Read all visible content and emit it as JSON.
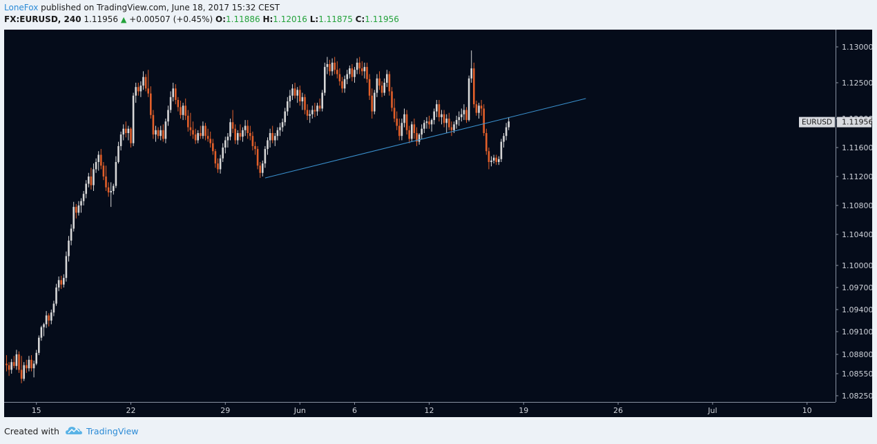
{
  "header": {
    "author": "LoneFox",
    "published": " published on TradingView.com, June 18, 2017 15:32 CEST",
    "symbol": "FX:EURUSD, 240",
    "price": "1.11956",
    "change": "+0.00507 (+0.45%)",
    "o_label": "O:",
    "o_value": "1.11886",
    "h_label": "H:",
    "h_value": "1.12016",
    "l_label": "L:",
    "l_value": "1.11875",
    "c_label": "C:",
    "c_value": "1.11956"
  },
  "footer": {
    "created_with": "Created with",
    "brand": "TradingView"
  },
  "colors": {
    "background": "#050c1a",
    "up": "#d7d7d7",
    "down": "#e25f2a",
    "trendline": "#3b93d1",
    "axis_text": "#cfd3da",
    "price_label_bg": "#d9dbe0"
  },
  "chart_data": {
    "type": "candlestick",
    "symbol": "EURUSD",
    "last_price": "1.11956",
    "y_ticks": [
      "1.13000",
      "1.12500",
      "1.12000",
      "1.11600",
      "1.11200",
      "1.10800",
      "1.10400",
      "1.10000",
      "1.09700",
      "1.09400",
      "1.09100",
      "1.08800",
      "1.08550",
      "1.08250"
    ],
    "x_ticks": [
      "15",
      "22",
      "29",
      "Jun",
      "6",
      "12",
      "19",
      "26",
      "Jul",
      "10"
    ],
    "x_tick_index": [
      12,
      50,
      88,
      118,
      140,
      170,
      208,
      246,
      284,
      322
    ],
    "ylim_note": "axis runs 1.08250 to 1.13000",
    "trendline": {
      "from": {
        "index": 104,
        "price": 1.1118
      },
      "to": {
        "index": 233,
        "price": 1.1228
      }
    },
    "candles": [
      [
        1.0868,
        1.0879,
        1.0858,
        1.0866
      ],
      [
        1.0866,
        1.087,
        1.0852,
        1.086
      ],
      [
        1.086,
        1.0874,
        1.0855,
        1.087
      ],
      [
        1.087,
        1.0878,
        1.0862,
        1.0865
      ],
      [
        1.0865,
        1.0886,
        1.086,
        1.088
      ],
      [
        1.088,
        1.0884,
        1.0856,
        1.086
      ],
      [
        1.086,
        1.0878,
        1.0842,
        1.0848
      ],
      [
        1.0848,
        1.087,
        1.0845,
        1.0866
      ],
      [
        1.0866,
        1.0873,
        1.0856,
        1.0862
      ],
      [
        1.0862,
        1.0878,
        1.0858,
        1.0873
      ],
      [
        1.0873,
        1.0879,
        1.0858,
        1.0862
      ],
      [
        1.0862,
        1.0872,
        1.085,
        1.0868
      ],
      [
        1.0868,
        1.0886,
        1.0866,
        1.0882
      ],
      [
        1.0882,
        1.0905,
        1.0879,
        1.0902
      ],
      [
        1.0902,
        1.0918,
        1.0898,
        1.0916
      ],
      [
        1.0916,
        1.0922,
        1.0904,
        1.092
      ],
      [
        1.092,
        1.0938,
        1.0915,
        1.0932
      ],
      [
        1.0932,
        1.0935,
        1.0917,
        1.0925
      ],
      [
        1.0925,
        1.094,
        1.092,
        1.0936
      ],
      [
        1.0936,
        1.0952,
        1.0931,
        1.0948
      ],
      [
        1.0948,
        1.0975,
        1.0945,
        1.097
      ],
      [
        1.097,
        1.0985,
        1.0965,
        1.098
      ],
      [
        1.098,
        1.0986,
        1.0968,
        1.0974
      ],
      [
        1.0974,
        1.0988,
        1.097,
        1.0983
      ],
      [
        1.0983,
        1.1018,
        1.0978,
        1.1012
      ],
      [
        1.1012,
        1.1038,
        1.1005,
        1.1032
      ],
      [
        1.1032,
        1.1054,
        1.1026,
        1.1048
      ],
      [
        1.1048,
        1.1085,
        1.1044,
        1.1078
      ],
      [
        1.1078,
        1.1082,
        1.1062,
        1.107
      ],
      [
        1.107,
        1.1086,
        1.1066,
        1.108
      ],
      [
        1.108,
        1.109,
        1.107,
        1.1086
      ],
      [
        1.1086,
        1.11,
        1.108,
        1.1096
      ],
      [
        1.1096,
        1.1115,
        1.109,
        1.111
      ],
      [
        1.111,
        1.1125,
        1.1105,
        1.112
      ],
      [
        1.112,
        1.1132,
        1.1102,
        1.1108
      ],
      [
        1.1108,
        1.1138,
        1.11,
        1.113
      ],
      [
        1.113,
        1.1145,
        1.1125,
        1.114
      ],
      [
        1.114,
        1.1155,
        1.1128,
        1.115
      ],
      [
        1.115,
        1.1158,
        1.113,
        1.1135
      ],
      [
        1.1135,
        1.114,
        1.1115,
        1.112
      ],
      [
        1.112,
        1.1135,
        1.11,
        1.1105
      ],
      [
        1.1105,
        1.1112,
        1.1092,
        1.1098
      ],
      [
        1.1098,
        1.1112,
        1.1078,
        1.11
      ],
      [
        1.11,
        1.111,
        1.1095,
        1.1107
      ],
      [
        1.1107,
        1.1148,
        1.1104,
        1.114
      ],
      [
        1.114,
        1.1168,
        1.1138,
        1.1162
      ],
      [
        1.1162,
        1.1182,
        1.1156,
        1.1178
      ],
      [
        1.1178,
        1.1192,
        1.117,
        1.1186
      ],
      [
        1.1186,
        1.1196,
        1.1174,
        1.118
      ],
      [
        1.118,
        1.119,
        1.117,
        1.1186
      ],
      [
        1.1186,
        1.1188,
        1.116,
        1.1166
      ],
      [
        1.1166,
        1.1236,
        1.1162,
        1.1232
      ],
      [
        1.1232,
        1.125,
        1.1222,
        1.1244
      ],
      [
        1.1244,
        1.125,
        1.1232,
        1.1238
      ],
      [
        1.1238,
        1.1252,
        1.123,
        1.1246
      ],
      [
        1.1246,
        1.1266,
        1.124,
        1.1258
      ],
      [
        1.1258,
        1.1262,
        1.1238,
        1.1242
      ],
      [
        1.1242,
        1.1268,
        1.123,
        1.1235
      ],
      [
        1.1235,
        1.1245,
        1.12,
        1.1205
      ],
      [
        1.1205,
        1.1212,
        1.1172,
        1.1178
      ],
      [
        1.1178,
        1.119,
        1.1168,
        1.1184
      ],
      [
        1.1184,
        1.1188,
        1.1172,
        1.1176
      ],
      [
        1.1176,
        1.119,
        1.117,
        1.1184
      ],
      [
        1.1184,
        1.1192,
        1.1168,
        1.1172
      ],
      [
        1.1172,
        1.12,
        1.1166,
        1.1196
      ],
      [
        1.1196,
        1.1218,
        1.119,
        1.1212
      ],
      [
        1.1212,
        1.1238,
        1.1208,
        1.123
      ],
      [
        1.123,
        1.125,
        1.1224,
        1.1242
      ],
      [
        1.1242,
        1.1248,
        1.122,
        1.1226
      ],
      [
        1.1226,
        1.123,
        1.121,
        1.1216
      ],
      [
        1.1216,
        1.1225,
        1.12,
        1.1205
      ],
      [
        1.1205,
        1.1222,
        1.1198,
        1.1218
      ],
      [
        1.1218,
        1.1228,
        1.1198,
        1.1204
      ],
      [
        1.1204,
        1.1212,
        1.1182,
        1.1188
      ],
      [
        1.1188,
        1.1208,
        1.1176,
        1.1184
      ],
      [
        1.1184,
        1.1196,
        1.1172,
        1.1178
      ],
      [
        1.1178,
        1.1186,
        1.1165,
        1.117
      ],
      [
        1.117,
        1.1184,
        1.1166,
        1.118
      ],
      [
        1.118,
        1.119,
        1.1172,
        1.1176
      ],
      [
        1.1176,
        1.1196,
        1.1172,
        1.119
      ],
      [
        1.119,
        1.1194,
        1.117,
        1.1176
      ],
      [
        1.1176,
        1.1186,
        1.1168,
        1.1172
      ],
      [
        1.1172,
        1.1182,
        1.116,
        1.1166
      ],
      [
        1.1166,
        1.1172,
        1.115,
        1.1155
      ],
      [
        1.1155,
        1.1158,
        1.1132,
        1.1138
      ],
      [
        1.1138,
        1.1145,
        1.1125,
        1.113
      ],
      [
        1.113,
        1.115,
        1.1124,
        1.1145
      ],
      [
        1.1145,
        1.1166,
        1.114,
        1.116
      ],
      [
        1.116,
        1.1175,
        1.1152,
        1.117
      ],
      [
        1.117,
        1.118,
        1.116,
        1.1175
      ],
      [
        1.1175,
        1.12,
        1.117,
        1.1195
      ],
      [
        1.1195,
        1.1212,
        1.118,
        1.1186
      ],
      [
        1.1186,
        1.1192,
        1.1165,
        1.117
      ],
      [
        1.117,
        1.1184,
        1.1164,
        1.118
      ],
      [
        1.118,
        1.1192,
        1.117,
        1.1175
      ],
      [
        1.1175,
        1.1188,
        1.1168,
        1.1184
      ],
      [
        1.1184,
        1.1198,
        1.1176,
        1.119
      ],
      [
        1.119,
        1.1198,
        1.1172,
        1.118
      ],
      [
        1.118,
        1.119,
        1.117,
        1.1176
      ],
      [
        1.1176,
        1.1182,
        1.1156,
        1.1162
      ],
      [
        1.1162,
        1.1168,
        1.115,
        1.1158
      ],
      [
        1.1158,
        1.1162,
        1.113,
        1.1135
      ],
      [
        1.1135,
        1.114,
        1.1118,
        1.1125
      ],
      [
        1.1125,
        1.1142,
        1.112,
        1.1138
      ],
      [
        1.1138,
        1.1162,
        1.1132,
        1.1158
      ],
      [
        1.1158,
        1.1174,
        1.115,
        1.117
      ],
      [
        1.117,
        1.1186,
        1.116,
        1.118
      ],
      [
        1.118,
        1.119,
        1.1166,
        1.117
      ],
      [
        1.117,
        1.118,
        1.1162,
        1.1176
      ],
      [
        1.1176,
        1.1188,
        1.117,
        1.1184
      ],
      [
        1.1184,
        1.1194,
        1.1176,
        1.1188
      ],
      [
        1.1188,
        1.12,
        1.1182,
        1.1195
      ],
      [
        1.1195,
        1.1215,
        1.119,
        1.121
      ],
      [
        1.121,
        1.123,
        1.1204,
        1.1224
      ],
      [
        1.1224,
        1.124,
        1.1215,
        1.1232
      ],
      [
        1.1232,
        1.1248,
        1.1226,
        1.1242
      ],
      [
        1.1242,
        1.125,
        1.1228,
        1.1232
      ],
      [
        1.1232,
        1.1244,
        1.1222,
        1.124
      ],
      [
        1.124,
        1.1246,
        1.1218,
        1.1224
      ],
      [
        1.1224,
        1.1236,
        1.1212,
        1.123
      ],
      [
        1.123,
        1.1234,
        1.1206,
        1.1212
      ],
      [
        1.1212,
        1.122,
        1.1198,
        1.1204
      ],
      [
        1.1204,
        1.1212,
        1.1194,
        1.1206
      ],
      [
        1.1206,
        1.1218,
        1.12,
        1.1212
      ],
      [
        1.1212,
        1.1222,
        1.1202,
        1.121
      ],
      [
        1.121,
        1.1222,
        1.1204,
        1.1218
      ],
      [
        1.1218,
        1.1228,
        1.121,
        1.1214
      ],
      [
        1.1214,
        1.124,
        1.121,
        1.1236
      ],
      [
        1.1236,
        1.1278,
        1.1232,
        1.1272
      ],
      [
        1.1272,
        1.1286,
        1.1262,
        1.1276
      ],
      [
        1.1276,
        1.1282,
        1.126,
        1.1266
      ],
      [
        1.1266,
        1.1284,
        1.126,
        1.1278
      ],
      [
        1.1278,
        1.1286,
        1.1262,
        1.1268
      ],
      [
        1.1268,
        1.128,
        1.1256,
        1.1262
      ],
      [
        1.1262,
        1.127,
        1.1246,
        1.1252
      ],
      [
        1.1252,
        1.1258,
        1.1236,
        1.1242
      ],
      [
        1.1242,
        1.126,
        1.1236,
        1.1255
      ],
      [
        1.1255,
        1.1268,
        1.1248,
        1.1262
      ],
      [
        1.1262,
        1.1274,
        1.1256,
        1.127
      ],
      [
        1.127,
        1.1276,
        1.1252,
        1.1258
      ],
      [
        1.1258,
        1.1272,
        1.125,
        1.1268
      ],
      [
        1.1268,
        1.1284,
        1.1262,
        1.1278
      ],
      [
        1.1278,
        1.1286,
        1.1262,
        1.127
      ],
      [
        1.127,
        1.128,
        1.126,
        1.1266
      ],
      [
        1.1266,
        1.1278,
        1.1256,
        1.1272
      ],
      [
        1.1272,
        1.1278,
        1.125,
        1.1255
      ],
      [
        1.1255,
        1.1262,
        1.1226,
        1.1232
      ],
      [
        1.1232,
        1.1242,
        1.12,
        1.121
      ],
      [
        1.121,
        1.124,
        1.1206,
        1.1236
      ],
      [
        1.1236,
        1.1262,
        1.123,
        1.1256
      ],
      [
        1.1256,
        1.1266,
        1.124,
        1.1246
      ],
      [
        1.1246,
        1.1252,
        1.123,
        1.1236
      ],
      [
        1.1236,
        1.1256,
        1.1232,
        1.125
      ],
      [
        1.125,
        1.1268,
        1.1244,
        1.1262
      ],
      [
        1.1262,
        1.1266,
        1.1232,
        1.1238
      ],
      [
        1.1238,
        1.1244,
        1.121,
        1.1215
      ],
      [
        1.1215,
        1.1228,
        1.1195,
        1.12
      ],
      [
        1.12,
        1.121,
        1.1184,
        1.119
      ],
      [
        1.119,
        1.12,
        1.117,
        1.1176
      ],
      [
        1.1176,
        1.12,
        1.117,
        1.1194
      ],
      [
        1.1194,
        1.1214,
        1.1188,
        1.1206
      ],
      [
        1.1206,
        1.1212,
        1.1178,
        1.1184
      ],
      [
        1.1184,
        1.119,
        1.1166,
        1.1172
      ],
      [
        1.1172,
        1.1196,
        1.1168,
        1.1192
      ],
      [
        1.1192,
        1.12,
        1.1172,
        1.118
      ],
      [
        1.118,
        1.1188,
        1.1162,
        1.1168
      ],
      [
        1.1168,
        1.118,
        1.1164,
        1.1178
      ],
      [
        1.1178,
        1.1192,
        1.1172,
        1.1186
      ],
      [
        1.1186,
        1.1198,
        1.118,
        1.1194
      ],
      [
        1.1194,
        1.1202,
        1.1186,
        1.1196
      ],
      [
        1.1196,
        1.1204,
        1.1186,
        1.1192
      ],
      [
        1.1192,
        1.12,
        1.1182,
        1.1198
      ],
      [
        1.1198,
        1.1214,
        1.1192,
        1.121
      ],
      [
        1.121,
        1.1226,
        1.1202,
        1.122
      ],
      [
        1.122,
        1.1226,
        1.1196,
        1.1202
      ],
      [
        1.1202,
        1.1212,
        1.1192,
        1.1206
      ],
      [
        1.1206,
        1.1212,
        1.1188,
        1.1194
      ],
      [
        1.1194,
        1.1206,
        1.118,
        1.12
      ],
      [
        1.12,
        1.1208,
        1.1184,
        1.1188
      ],
      [
        1.1188,
        1.1196,
        1.1176,
        1.1184
      ],
      [
        1.1184,
        1.1196,
        1.118,
        1.1192
      ],
      [
        1.1192,
        1.1204,
        1.1186,
        1.1198
      ],
      [
        1.1198,
        1.121,
        1.119,
        1.1202
      ],
      [
        1.1202,
        1.1214,
        1.1196,
        1.1206
      ],
      [
        1.1206,
        1.122,
        1.1198,
        1.1212
      ],
      [
        1.1212,
        1.1216,
        1.1194,
        1.1198
      ],
      [
        1.1198,
        1.126,
        1.1196,
        1.1256
      ],
      [
        1.1256,
        1.1295,
        1.125,
        1.127
      ],
      [
        1.127,
        1.1278,
        1.1215,
        1.122
      ],
      [
        1.122,
        1.1225,
        1.1204,
        1.1208
      ],
      [
        1.1208,
        1.1222,
        1.12,
        1.1218
      ],
      [
        1.1218,
        1.1226,
        1.1204,
        1.1214
      ],
      [
        1.1214,
        1.122,
        1.1176,
        1.118
      ],
      [
        1.118,
        1.1186,
        1.115,
        1.1155
      ],
      [
        1.1155,
        1.116,
        1.113,
        1.114
      ],
      [
        1.114,
        1.1148,
        1.1134,
        1.1142
      ],
      [
        1.1142,
        1.115,
        1.1138,
        1.1146
      ],
      [
        1.1146,
        1.115,
        1.1136,
        1.114
      ],
      [
        1.114,
        1.1148,
        1.1136,
        1.1144
      ],
      [
        1.1144,
        1.1172,
        1.114,
        1.1168
      ],
      [
        1.1168,
        1.118,
        1.116,
        1.1176
      ],
      [
        1.1176,
        1.1194,
        1.117,
        1.1188
      ],
      [
        1.1188,
        1.1202,
        1.1184,
        1.1196
      ]
    ]
  }
}
